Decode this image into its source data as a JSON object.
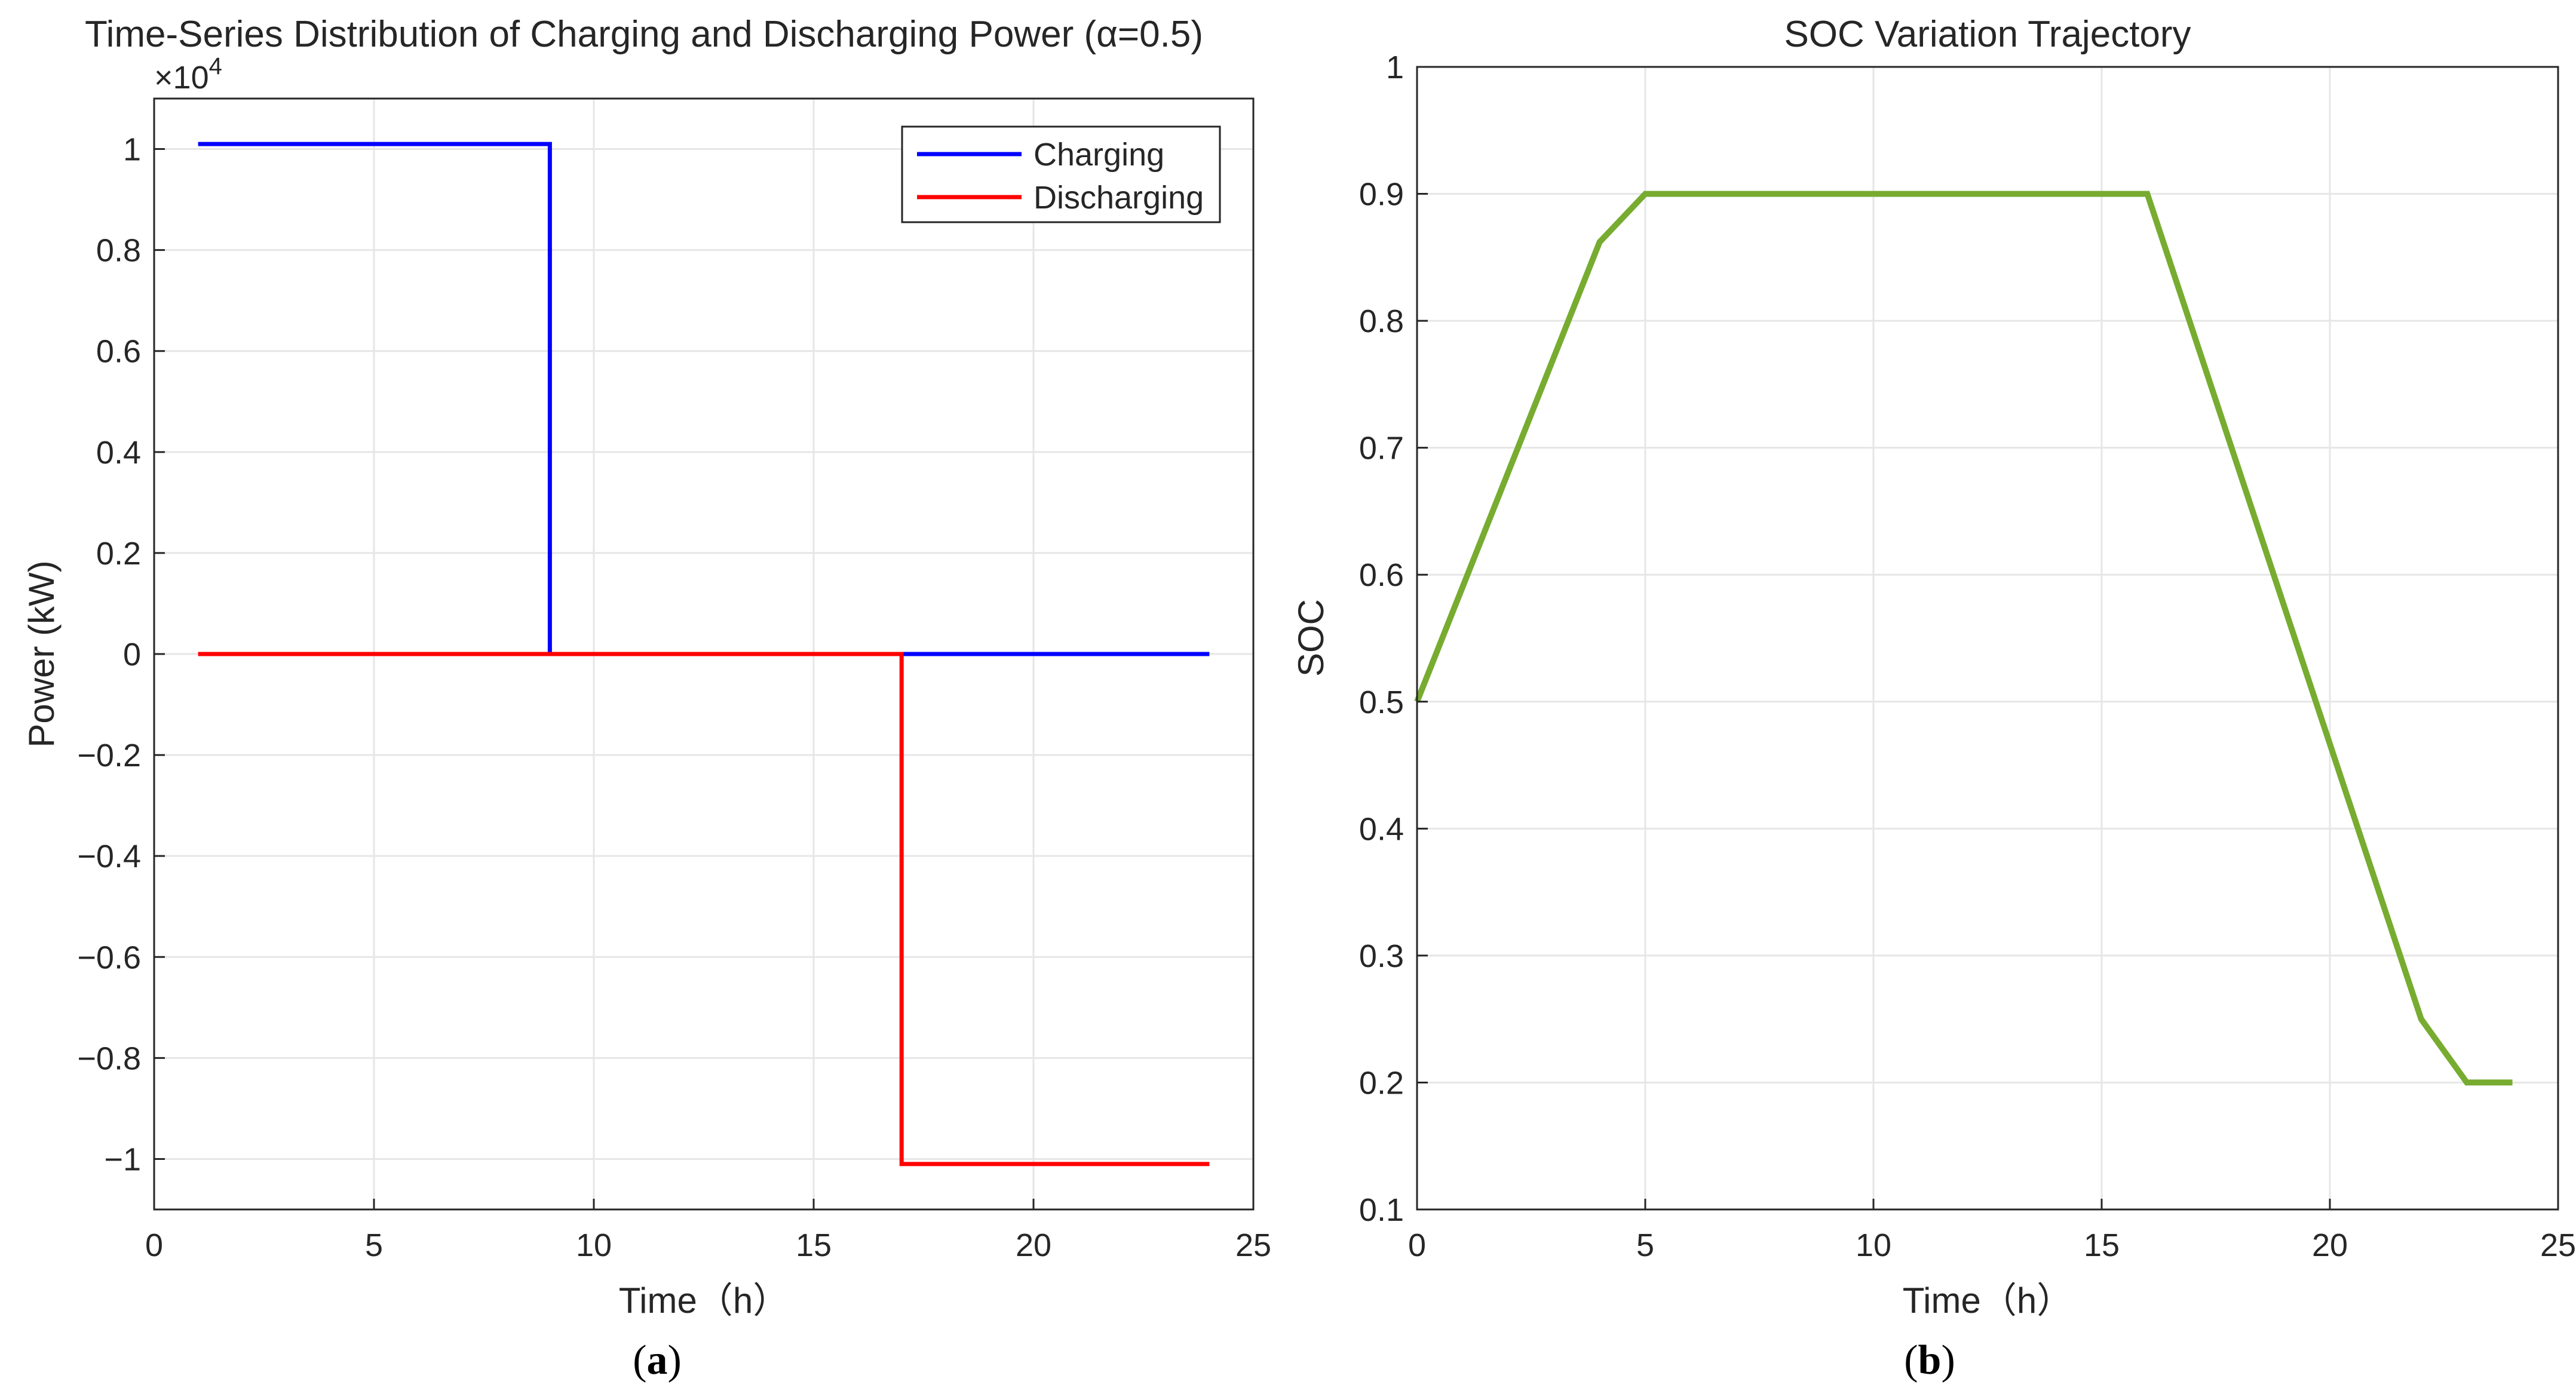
{
  "chart_data": [
    {
      "type": "line",
      "title": "Time-Series Distribution of Charging and Discharging Power (α=0.5)",
      "xlabel": "Time（h）",
      "ylabel": "Power (kW)",
      "exponent_label": "×10",
      "exponent_power": "4",
      "xlim": [
        0,
        25
      ],
      "ylim": [
        -1.1,
        1.1
      ],
      "y_scale": 10000,
      "xticks": [
        0,
        5,
        10,
        15,
        20,
        25
      ],
      "xtick_labels": [
        "0",
        "5",
        "10",
        "15",
        "20",
        "25"
      ],
      "yticks": [
        -1,
        -0.8,
        -0.6,
        -0.4,
        -0.2,
        0,
        0.2,
        0.4,
        0.6,
        0.8,
        1
      ],
      "ytick_labels": [
        "−1",
        "−0.8",
        "−0.6",
        "−0.4",
        "−0.2",
        "0",
        "0.2",
        "0.4",
        "0.6",
        "0.8",
        "1"
      ],
      "grid": true,
      "legend_position": "top-right",
      "series": [
        {
          "name": "Charging",
          "color": "#0000ff",
          "x": [
            1,
            9,
            9,
            24
          ],
          "y": [
            1.01,
            1.01,
            0,
            0
          ]
        },
        {
          "name": "Discharging",
          "color": "#ff0000",
          "x": [
            1,
            17,
            17,
            24
          ],
          "y": [
            0,
            0,
            -1.01,
            -1.01
          ]
        }
      ],
      "caption": "a"
    },
    {
      "type": "line",
      "title": "SOC Variation Trajectory",
      "xlabel": "Time（h）",
      "ylabel": "SOC",
      "xlim": [
        0,
        25
      ],
      "ylim": [
        0.1,
        1
      ],
      "xticks": [
        0,
        5,
        10,
        15,
        20,
        25
      ],
      "xtick_labels": [
        "0",
        "5",
        "10",
        "15",
        "20",
        "25"
      ],
      "yticks": [
        0.1,
        0.2,
        0.3,
        0.4,
        0.5,
        0.6,
        0.7,
        0.8,
        0.9,
        1
      ],
      "ytick_labels": [
        "0.1",
        "0.2",
        "0.3",
        "0.4",
        "0.5",
        "0.6",
        "0.7",
        "0.8",
        "0.9",
        "1"
      ],
      "grid": true,
      "series": [
        {
          "name": "SOC",
          "color": "#77ac30",
          "x": [
            0,
            4,
            5,
            16,
            22,
            23,
            24
          ],
          "y": [
            0.5,
            0.862,
            0.9,
            0.9,
            0.25,
            0.2,
            0.2
          ]
        }
      ],
      "caption": "b"
    }
  ]
}
